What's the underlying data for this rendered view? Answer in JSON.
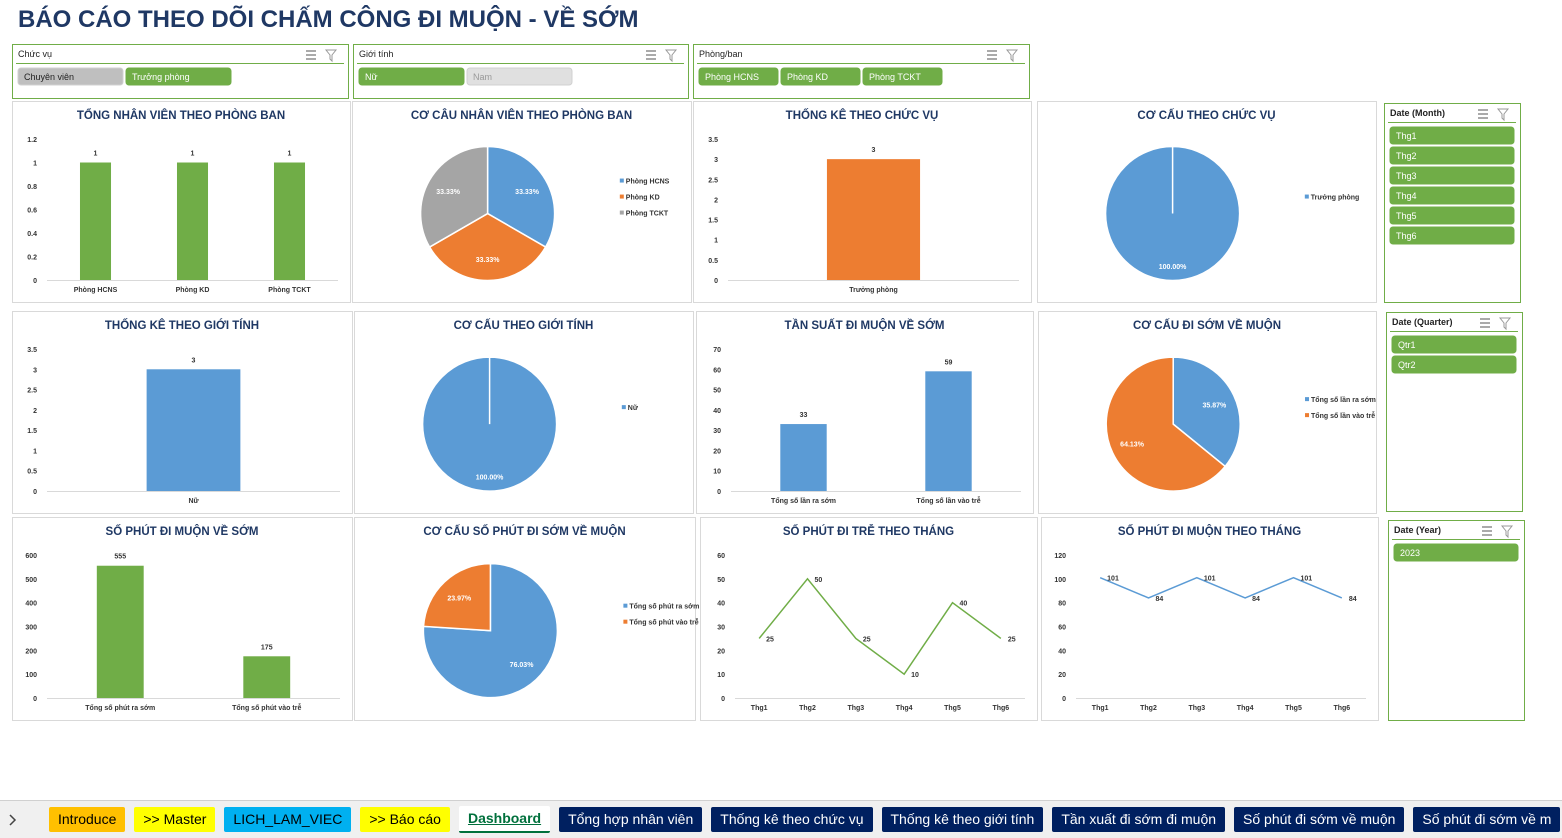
{
  "title": "BÁO CÁO THEO DÕI CHẤM CÔNG ĐI MUỘN - VỀ SỚM",
  "slicers": [
    {
      "title": "Chức vụ",
      "items": [
        {
          "label": "Chuyên viên",
          "selected": false
        },
        {
          "label": "Trưởng phòng",
          "selected": true
        }
      ]
    },
    {
      "title": "Giới tính",
      "items": [
        {
          "label": "Nữ",
          "selected": true
        },
        {
          "label": "Nam",
          "selected": false
        }
      ]
    },
    {
      "title": "Phòng/ban",
      "items": [
        {
          "label": "Phòng HCNS",
          "selected": true
        },
        {
          "label": "Phòng KD",
          "selected": true
        },
        {
          "label": "Phòng TCKT",
          "selected": true
        }
      ]
    },
    {
      "title": "Date (Month)",
      "items": [
        {
          "label": "Thg1",
          "selected": true
        },
        {
          "label": "Thg2",
          "selected": true
        },
        {
          "label": "Thg3",
          "selected": true
        },
        {
          "label": "Thg4",
          "selected": true
        },
        {
          "label": "Thg5",
          "selected": true
        },
        {
          "label": "Thg6",
          "selected": true
        }
      ]
    },
    {
      "title": "Date (Quarter)",
      "items": [
        {
          "label": "Qtr1",
          "selected": true
        },
        {
          "label": "Qtr2",
          "selected": true
        }
      ]
    },
    {
      "title": "Date (Year)",
      "items": [
        {
          "label": "2023",
          "selected": true
        }
      ]
    }
  ],
  "chart_data": [
    {
      "type": "bar",
      "title": "TỔNG NHÂN VIÊN THEO PHÒNG BAN",
      "categories": [
        "Phòng HCNS",
        "Phòng KD",
        "Phòng TCKT"
      ],
      "values": [
        1,
        1,
        1
      ],
      "color": "#70ad47",
      "ylim": [
        0,
        1.2
      ],
      "yticks": [
        0,
        0.2,
        0.4,
        0.6,
        0.8,
        1,
        1.2
      ]
    },
    {
      "type": "pie",
      "title": "CƠ CÂU NHÂN VIÊN THEO PHÒNG BAN",
      "categories": [
        "Phòng HCNS",
        "Phòng KD",
        "Phòng TCKT"
      ],
      "values": [
        33.33,
        33.33,
        33.33
      ],
      "value_labels": [
        "33.33%",
        "33.33%",
        "33.33%"
      ],
      "colors": [
        "#5b9bd5",
        "#ed7d31",
        "#a5a5a5"
      ]
    },
    {
      "type": "bar",
      "title": "THỐNG KÊ THEO CHỨC VỤ",
      "categories": [
        "Trưởng phòng"
      ],
      "values": [
        3
      ],
      "color": "#ed7d31",
      "ylim": [
        0,
        3.5
      ],
      "yticks": [
        0,
        0.5,
        1,
        1.5,
        2,
        2.5,
        3,
        3.5
      ]
    },
    {
      "type": "pie",
      "title": "CƠ CẤU THEO CHỨC VỤ",
      "categories": [
        "Trưởng phòng"
      ],
      "values": [
        100
      ],
      "value_labels": [
        "100.00%"
      ],
      "colors": [
        "#5b9bd5"
      ]
    },
    {
      "type": "bar",
      "title": "THỐNG KÊ THEO GIỚI TÍNH",
      "categories": [
        "Nữ"
      ],
      "values": [
        3
      ],
      "color": "#5b9bd5",
      "ylim": [
        0,
        3.5
      ],
      "yticks": [
        0,
        0.5,
        1,
        1.5,
        2,
        2.5,
        3,
        3.5
      ]
    },
    {
      "type": "pie",
      "title": "CƠ CẤU THEO GIỚI TÍNH",
      "categories": [
        "Nữ"
      ],
      "values": [
        100
      ],
      "value_labels": [
        "100.00%"
      ],
      "colors": [
        "#5b9bd5"
      ]
    },
    {
      "type": "bar",
      "title": "TẦN SUẤT ĐI MUỘN VỀ SỚM",
      "categories": [
        "Tổng số lần ra sớm",
        "Tổng số lần vào trễ"
      ],
      "values": [
        33,
        59
      ],
      "color": "#5b9bd5",
      "ylim": [
        0,
        70
      ],
      "yticks": [
        0,
        10,
        20,
        30,
        40,
        50,
        60,
        70
      ]
    },
    {
      "type": "pie",
      "title": "CƠ CẤU ĐI SỚM VỀ MUỘN",
      "categories": [
        "Tổng số lần ra sớm",
        "Tổng số lần vào trễ"
      ],
      "values": [
        35.87,
        64.13
      ],
      "value_labels": [
        "35.87%",
        "64.13%"
      ],
      "colors": [
        "#5b9bd5",
        "#ed7d31"
      ]
    },
    {
      "type": "bar",
      "title": "SỐ PHÚT ĐI MUỘN VỀ SỚM",
      "categories": [
        "Tổng số phút  ra sớm",
        "Tổng số phút vào trễ"
      ],
      "values": [
        555,
        175
      ],
      "color": "#70ad47",
      "ylim": [
        0,
        600
      ],
      "yticks": [
        0,
        100,
        200,
        300,
        400,
        500,
        600
      ]
    },
    {
      "type": "pie",
      "title": "CƠ CẤU SỐ PHÚT ĐI SỚM VỀ MUỘN",
      "categories": [
        "Tổng số phút  ra sớm",
        "Tổng số phút vào trễ"
      ],
      "values": [
        76.03,
        23.97
      ],
      "value_labels": [
        "76.03%",
        "23.97%"
      ],
      "colors": [
        "#5b9bd5",
        "#ed7d31"
      ]
    },
    {
      "type": "line",
      "title": "SỐ PHÚT ĐI TRỄ THEO THÁNG",
      "categories": [
        "Thg1",
        "Thg2",
        "Thg3",
        "Thg4",
        "Thg5",
        "Thg6"
      ],
      "values": [
        25,
        50,
        25,
        10,
        40,
        25
      ],
      "color": "#70ad47",
      "ylim": [
        0,
        60
      ],
      "yticks": [
        0,
        10,
        20,
        30,
        40,
        50,
        60
      ]
    },
    {
      "type": "line",
      "title": "SỐ PHÚT ĐI MUỘN THEO THÁNG",
      "categories": [
        "Thg1",
        "Thg2",
        "Thg3",
        "Thg4",
        "Thg5",
        "Thg6"
      ],
      "values": [
        101,
        84,
        101,
        84,
        101,
        84
      ],
      "color": "#5b9bd5",
      "ylim": [
        0,
        120
      ],
      "yticks": [
        0,
        20,
        40,
        60,
        80,
        100,
        120
      ]
    }
  ],
  "tabs": [
    {
      "label": "Introduce",
      "color": "#ffc000",
      "text_color": "#000000"
    },
    {
      "label": ">> Master",
      "color": "#ffff00",
      "text_color": "#000000"
    },
    {
      "label": "LICH_LAM_VIEC",
      "color": "#00b0f0",
      "text_color": "#000000"
    },
    {
      "label": ">> Báo cáo",
      "color": "#ffff00",
      "text_color": "#000000"
    },
    {
      "label": "Dashboard",
      "color": "#ffffff",
      "text_color": "#00703c",
      "active": true
    },
    {
      "label": "Tổng hợp nhân viên",
      "color": "#002060",
      "text_color": "#ffffff"
    },
    {
      "label": "Thống kê theo chức vụ",
      "color": "#002060",
      "text_color": "#ffffff"
    },
    {
      "label": "Thống kê theo giới tính",
      "color": "#002060",
      "text_color": "#ffffff"
    },
    {
      "label": "Tần xuất đi sớm đi muộn",
      "color": "#002060",
      "text_color": "#ffffff"
    },
    {
      "label": "Số phút đi sớm về muộn",
      "color": "#002060",
      "text_color": "#ffffff"
    },
    {
      "label": "Số phút đi sớm về m",
      "color": "#002060",
      "text_color": "#ffffff"
    }
  ]
}
